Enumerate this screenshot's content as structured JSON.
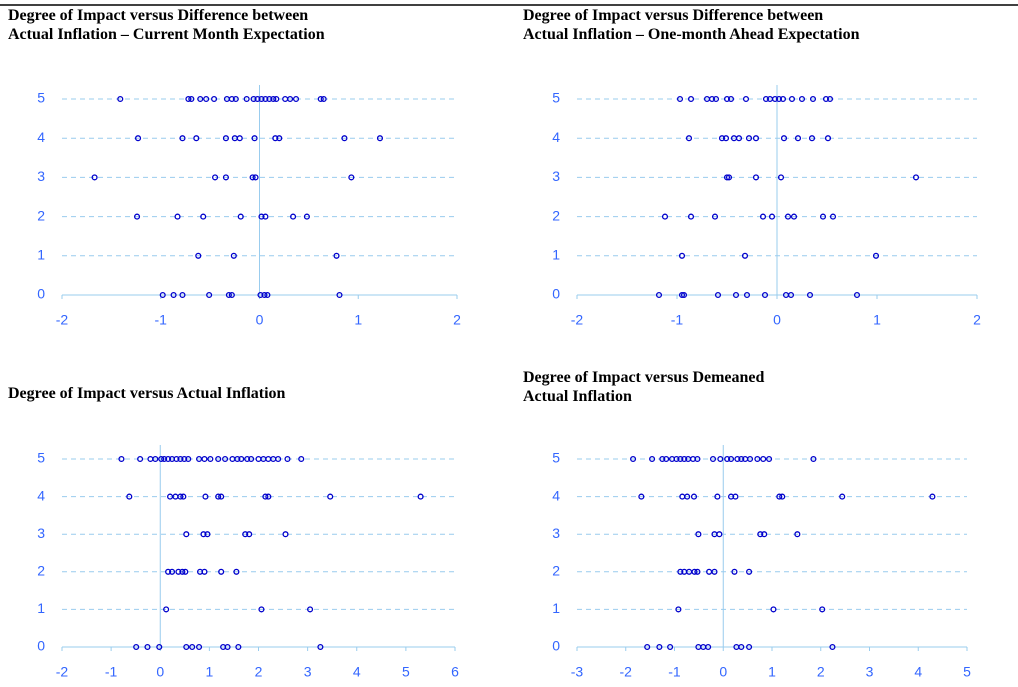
{
  "chart_data": [
    {
      "type": "scatter",
      "title": [
        "Degree of Impact versus Difference between",
        "Actual Inflation – Current Month Expectation"
      ],
      "color": "#0000cc",
      "grid": true,
      "xlim": [
        -2,
        2
      ],
      "xticks": [
        -2,
        -1,
        0,
        1,
        2
      ],
      "ylim": [
        0,
        5
      ],
      "yticks": [
        0,
        1,
        2,
        3,
        4,
        5
      ],
      "x": [
        -1.41,
        -0.72,
        -0.69,
        -0.6,
        -0.54,
        -0.46,
        -0.33,
        -0.28,
        -0.24,
        -0.13,
        -0.06,
        -0.02,
        0.02,
        0.06,
        0.1,
        0.14,
        0.17,
        0.26,
        0.31,
        0.37,
        0.62,
        0.65,
        -1.23,
        -0.78,
        -0.64,
        -0.34,
        -0.25,
        -0.2,
        -0.05,
        0.16,
        0.2,
        0.86,
        1.22,
        -1.67,
        -0.45,
        -0.34,
        -0.07,
        -0.04,
        0.93,
        -1.24,
        -0.83,
        -0.57,
        -0.19,
        0.02,
        0.06,
        0.34,
        0.48,
        -0.62,
        -0.26,
        0.78,
        -0.98,
        -0.87,
        -0.78,
        -0.51,
        -0.31,
        -0.28,
        0.01,
        0.05,
        0.08,
        0.81
      ],
      "values": [
        5,
        5,
        5,
        5,
        5,
        5,
        5,
        5,
        5,
        5,
        5,
        5,
        5,
        5,
        5,
        5,
        5,
        5,
        5,
        5,
        5,
        5,
        4,
        4,
        4,
        4,
        4,
        4,
        4,
        4,
        4,
        4,
        4,
        3,
        3,
        3,
        3,
        3,
        3,
        2,
        2,
        2,
        2,
        2,
        2,
        2,
        2,
        1,
        1,
        1,
        0,
        0,
        0,
        0,
        0,
        0,
        0,
        0,
        0,
        0
      ]
    },
    {
      "type": "scatter",
      "title": [
        "Degree of Impact versus Difference between",
        "Actual Inflation – One-month Ahead Expectation"
      ],
      "color": "#0000cc",
      "grid": true,
      "xlim": [
        -2,
        2
      ],
      "xticks": [
        -2,
        -1,
        0,
        1,
        2
      ],
      "ylim": [
        0,
        5
      ],
      "yticks": [
        0,
        1,
        2,
        3,
        4,
        5
      ],
      "x": [
        -0.97,
        -0.86,
        -0.7,
        -0.65,
        -0.61,
        -0.5,
        -0.46,
        -0.31,
        -0.11,
        -0.07,
        -0.02,
        0.02,
        0.06,
        0.15,
        0.25,
        0.36,
        0.49,
        0.53,
        -0.88,
        -0.55,
        -0.51,
        -0.43,
        -0.38,
        -0.28,
        -0.21,
        0.07,
        0.21,
        0.35,
        0.51,
        -0.5,
        -0.48,
        -0.21,
        0.04,
        1.39,
        -1.12,
        -0.86,
        -0.62,
        -0.14,
        -0.05,
        0.11,
        0.17,
        0.46,
        0.56,
        -0.95,
        -0.32,
        0.99,
        -1.18,
        -0.95,
        -0.93,
        -0.59,
        -0.41,
        -0.3,
        -0.12,
        0.09,
        0.14,
        0.33,
        0.8
      ],
      "values": [
        5,
        5,
        5,
        5,
        5,
        5,
        5,
        5,
        5,
        5,
        5,
        5,
        5,
        5,
        5,
        5,
        5,
        5,
        4,
        4,
        4,
        4,
        4,
        4,
        4,
        4,
        4,
        4,
        4,
        3,
        3,
        3,
        3,
        3,
        2,
        2,
        2,
        2,
        2,
        2,
        2,
        2,
        2,
        1,
        1,
        1,
        0,
        0,
        0,
        0,
        0,
        0,
        0,
        0,
        0,
        0,
        0
      ]
    },
    {
      "type": "scatter",
      "title": [
        "Degree of Impact versus Actual Inflation"
      ],
      "color": "#0000cc",
      "grid": true,
      "xlim": [
        -2,
        6
      ],
      "xticks": [
        -2,
        -1,
        0,
        1,
        2,
        3,
        4,
        5,
        6
      ],
      "ylim": [
        0,
        5
      ],
      "yticks": [
        0,
        1,
        2,
        3,
        4,
        5
      ],
      "x": [
        -0.79,
        -0.41,
        -0.2,
        -0.1,
        0.02,
        0.08,
        0.16,
        0.24,
        0.33,
        0.41,
        0.49,
        0.57,
        0.79,
        0.9,
        1.02,
        1.18,
        1.32,
        1.47,
        1.57,
        1.65,
        1.77,
        1.85,
        2.0,
        2.1,
        2.2,
        2.3,
        2.4,
        2.59,
        2.87,
        -0.63,
        0.2,
        0.31,
        0.41,
        0.47,
        0.92,
        1.18,
        1.24,
        2.14,
        2.2,
        3.46,
        5.3,
        0.53,
        0.88,
        0.96,
        1.73,
        1.81,
        2.55,
        0.16,
        0.24,
        0.37,
        0.45,
        0.51,
        0.81,
        0.9,
        1.24,
        1.55,
        0.12,
        2.06,
        3.05,
        -0.49,
        -0.26,
        -0.02,
        0.53,
        0.65,
        0.79,
        1.28,
        1.37,
        1.59,
        3.26
      ],
      "values": [
        5,
        5,
        5,
        5,
        5,
        5,
        5,
        5,
        5,
        5,
        5,
        5,
        5,
        5,
        5,
        5,
        5,
        5,
        5,
        5,
        5,
        5,
        5,
        5,
        5,
        5,
        5,
        5,
        5,
        4,
        4,
        4,
        4,
        4,
        4,
        4,
        4,
        4,
        4,
        4,
        4,
        3,
        3,
        3,
        3,
        3,
        3,
        2,
        2,
        2,
        2,
        2,
        2,
        2,
        2,
        2,
        1,
        1,
        1,
        0,
        0,
        0,
        0,
        0,
        0,
        0,
        0,
        0,
        0
      ]
    },
    {
      "type": "scatter",
      "title": [
        "Degree of Impact versus Demeaned",
        "Actual Inflation"
      ],
      "color": "#0000cc",
      "grid": true,
      "xlim": [
        -3,
        5
      ],
      "xticks": [
        -3,
        -2,
        -1,
        0,
        1,
        2,
        3,
        4,
        5
      ],
      "ylim": [
        0,
        5
      ],
      "yticks": [
        0,
        1,
        2,
        3,
        4,
        5
      ],
      "x": [
        -1.85,
        -1.46,
        -1.25,
        -1.17,
        -1.05,
        -0.96,
        -0.88,
        -0.8,
        -0.72,
        -0.62,
        -0.53,
        -0.21,
        -0.06,
        0.08,
        0.16,
        0.29,
        0.37,
        0.45,
        0.55,
        0.7,
        0.82,
        0.94,
        1.85,
        -1.68,
        -0.84,
        -0.74,
        -0.6,
        -0.12,
        0.16,
        0.25,
        1.15,
        1.21,
        2.44,
        4.29,
        -0.51,
        -0.18,
        -0.08,
        0.76,
        0.84,
        1.52,
        -0.88,
        -0.8,
        -0.7,
        -0.59,
        -0.53,
        -0.29,
        -0.18,
        0.23,
        0.53,
        -0.92,
        1.03,
        2.03,
        -1.56,
        -1.31,
        -1.09,
        -0.51,
        -0.41,
        -0.31,
        0.27,
        0.37,
        0.53,
        2.24
      ],
      "values": [
        5,
        5,
        5,
        5,
        5,
        5,
        5,
        5,
        5,
        5,
        5,
        5,
        5,
        5,
        5,
        5,
        5,
        5,
        5,
        5,
        5,
        5,
        5,
        4,
        4,
        4,
        4,
        4,
        4,
        4,
        4,
        4,
        4,
        4,
        3,
        3,
        3,
        3,
        3,
        3,
        2,
        2,
        2,
        2,
        2,
        2,
        2,
        2,
        2,
        1,
        1,
        1,
        0,
        0,
        0,
        0,
        0,
        0,
        0,
        0,
        0,
        0
      ]
    }
  ]
}
